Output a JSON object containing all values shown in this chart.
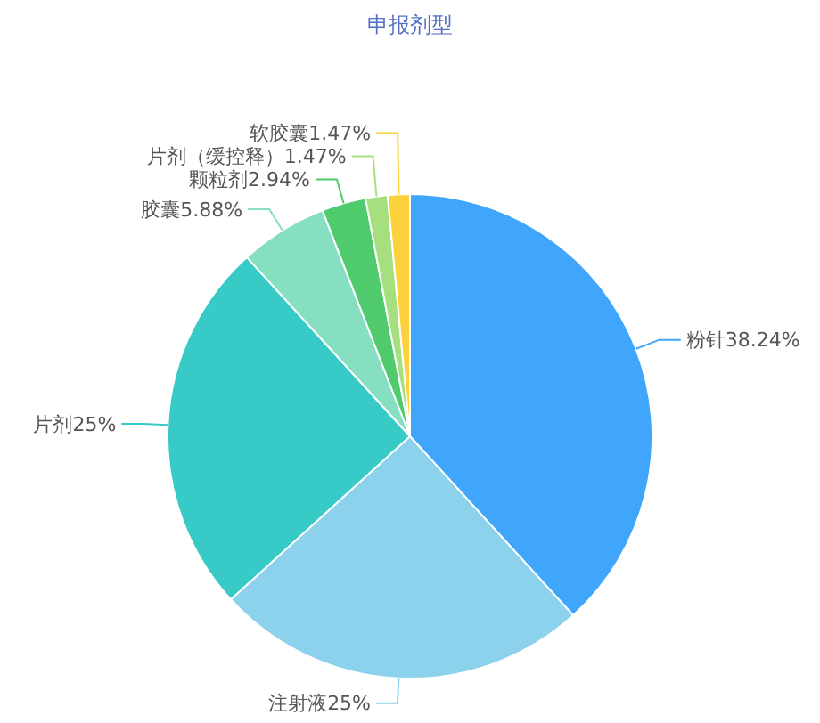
{
  "chart_data": {
    "type": "pie",
    "title": "申报剂型",
    "categories": [
      "粉针",
      "注射液",
      "片剂",
      "胶囊",
      "颗粒剂",
      "片剂（缓控释）",
      "软胶囊"
    ],
    "values": [
      38.24,
      25,
      25,
      5.88,
      2.94,
      1.47,
      1.47
    ],
    "value_labels": [
      "38.24%",
      "25%",
      "25%",
      "5.88%",
      "2.94%",
      "1.47%",
      "1.47%"
    ],
    "colors": [
      "#3fa6fb",
      "#8dd2ec",
      "#38cac6",
      "#86dfc0",
      "#4fcb6e",
      "#a6e07e",
      "#fcd23c"
    ]
  }
}
